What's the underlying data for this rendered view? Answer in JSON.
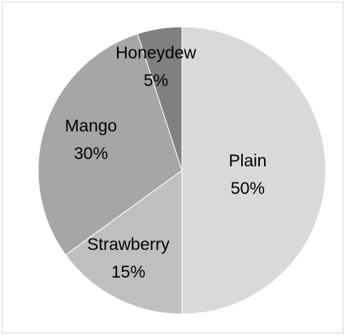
{
  "chart_data": {
    "type": "pie",
    "categories": [
      "Plain",
      "Strawberry",
      "Mango",
      "Honeydew"
    ],
    "values": [
      50,
      15,
      30,
      5
    ],
    "labels": [
      {
        "name": "Plain",
        "value": "50%"
      },
      {
        "name": "Strawberry",
        "value": "15%"
      },
      {
        "name": "Mango",
        "value": "30%"
      },
      {
        "name": "Honeydew",
        "value": "5%"
      }
    ],
    "colors": [
      "#d9d9d9",
      "#bfbfbf",
      "#a6a6a6",
      "#808080"
    ],
    "stroke_color": "#ffffff",
    "start": "12 o'clock",
    "direction": "clockwise"
  }
}
